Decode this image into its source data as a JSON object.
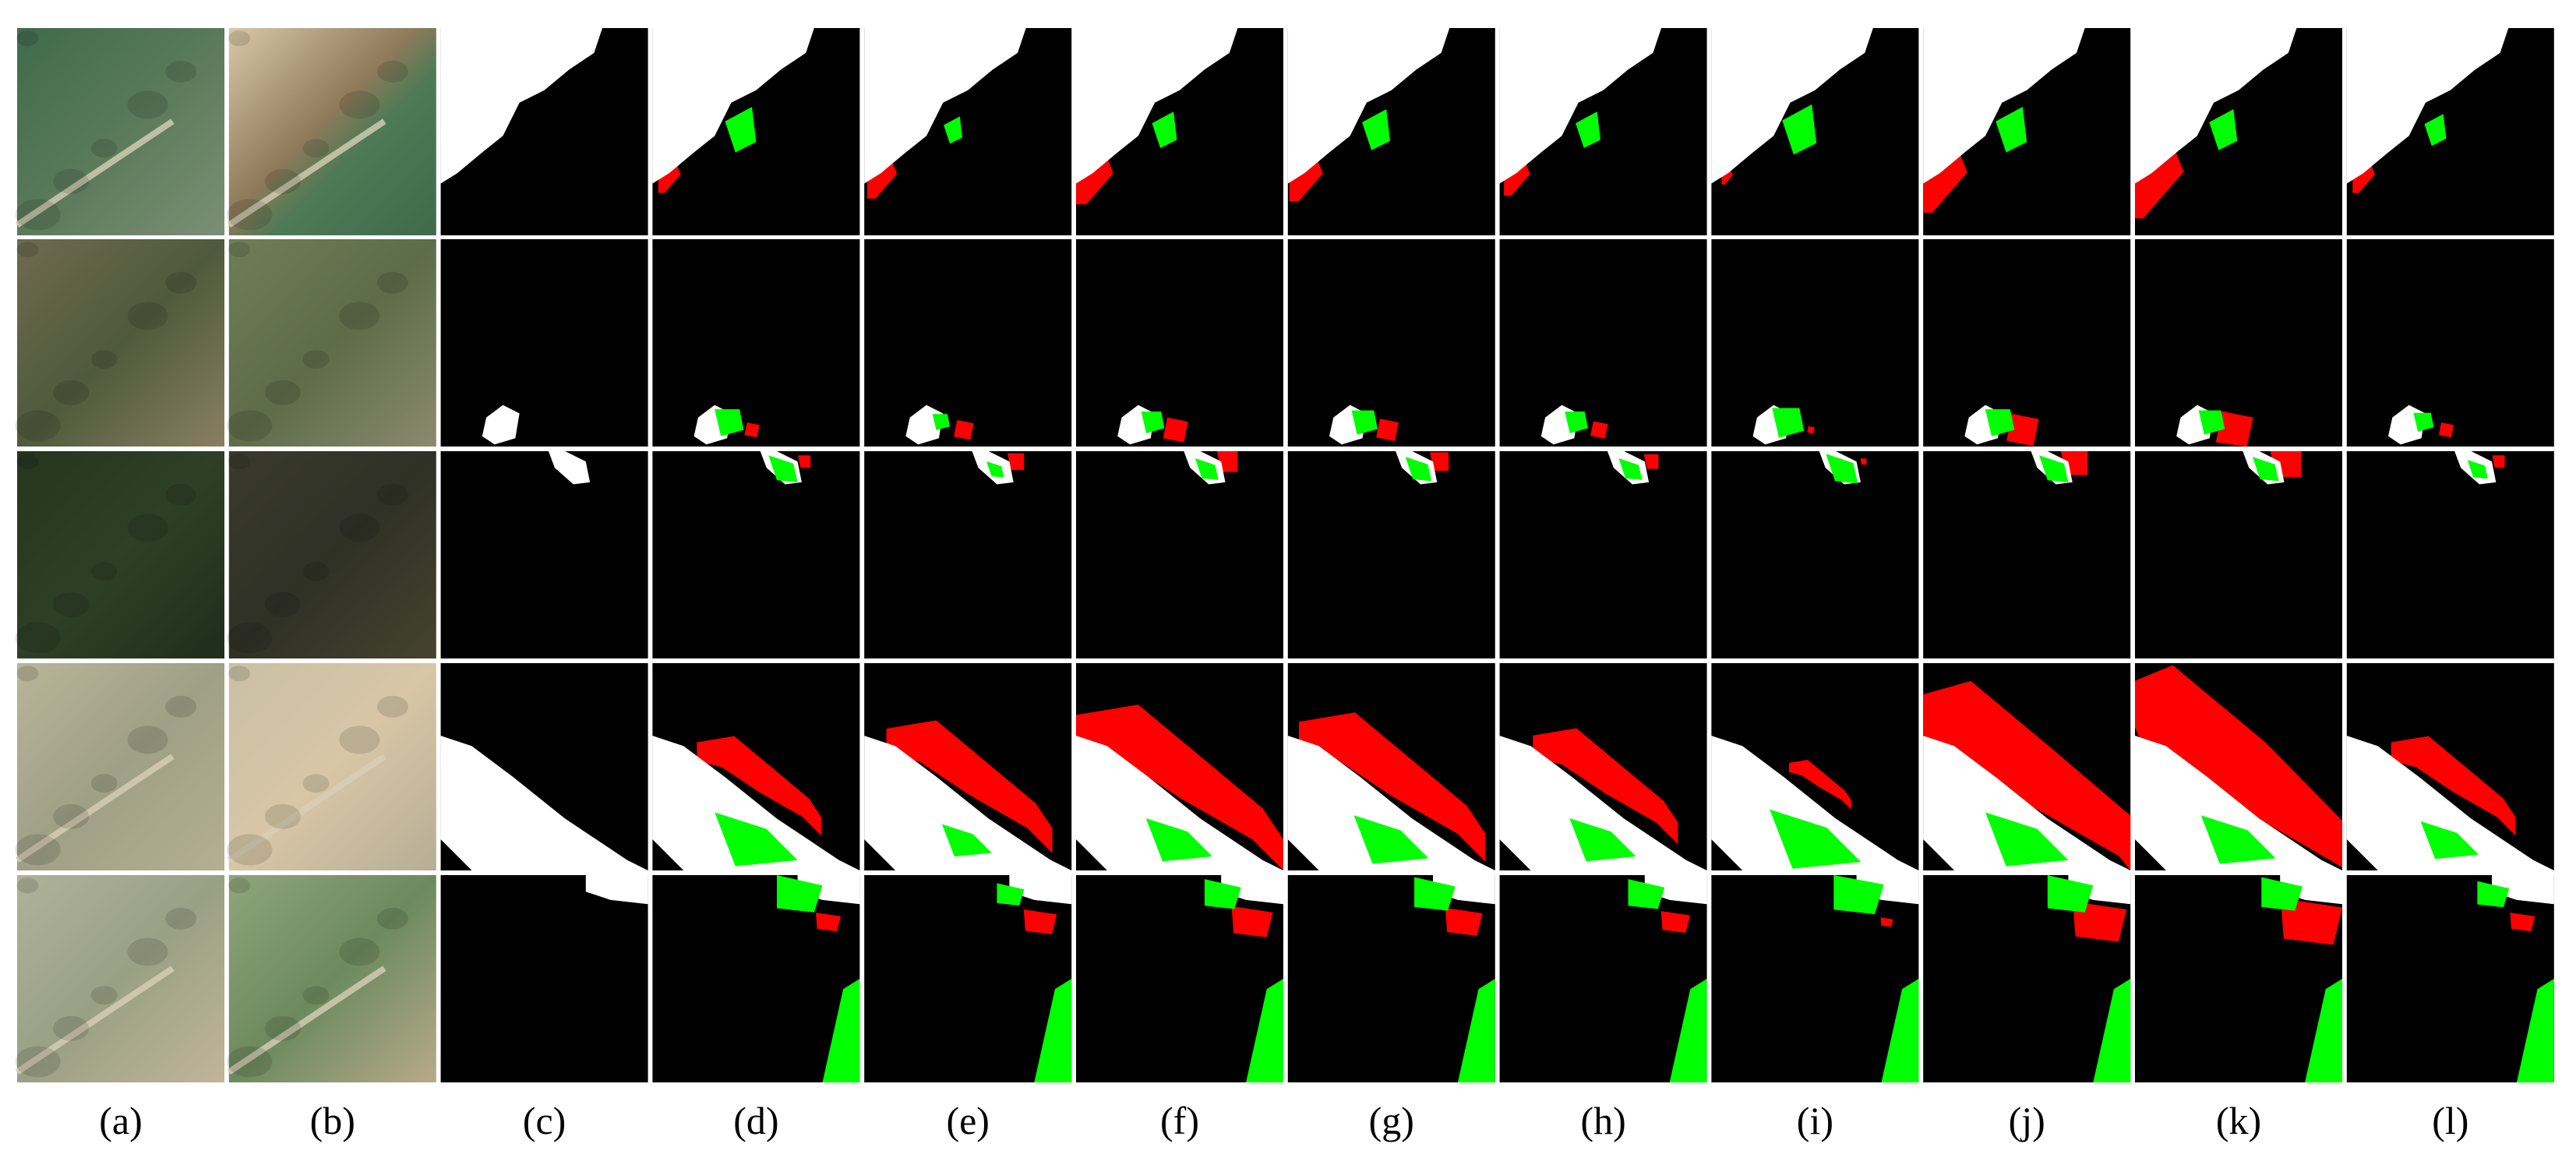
{
  "figure": {
    "columns": [
      {
        "id": "a",
        "label": "(a)",
        "kind": "pre-change image"
      },
      {
        "id": "b",
        "label": "(b)",
        "kind": "post-change image"
      },
      {
        "id": "c",
        "label": "(c)",
        "kind": "ground truth"
      },
      {
        "id": "d",
        "label": "(d)",
        "kind": "prediction"
      },
      {
        "id": "e",
        "label": "(e)",
        "kind": "prediction"
      },
      {
        "id": "f",
        "label": "(f)",
        "kind": "prediction"
      },
      {
        "id": "g",
        "label": "(g)",
        "kind": "prediction"
      },
      {
        "id": "h",
        "label": "(h)",
        "kind": "prediction"
      },
      {
        "id": "i",
        "label": "(i)",
        "kind": "prediction"
      },
      {
        "id": "j",
        "label": "(j)",
        "kind": "prediction"
      },
      {
        "id": "k",
        "label": "(k)",
        "kind": "prediction"
      },
      {
        "id": "l",
        "label": "(l)",
        "kind": "prediction"
      }
    ],
    "row_count": 5,
    "colors": {
      "background": "#ffffff",
      "unchanged": "#000000",
      "true_positive": "#ffffff",
      "false_positive": "#ff0000",
      "false_negative": "#00ff00"
    }
  }
}
